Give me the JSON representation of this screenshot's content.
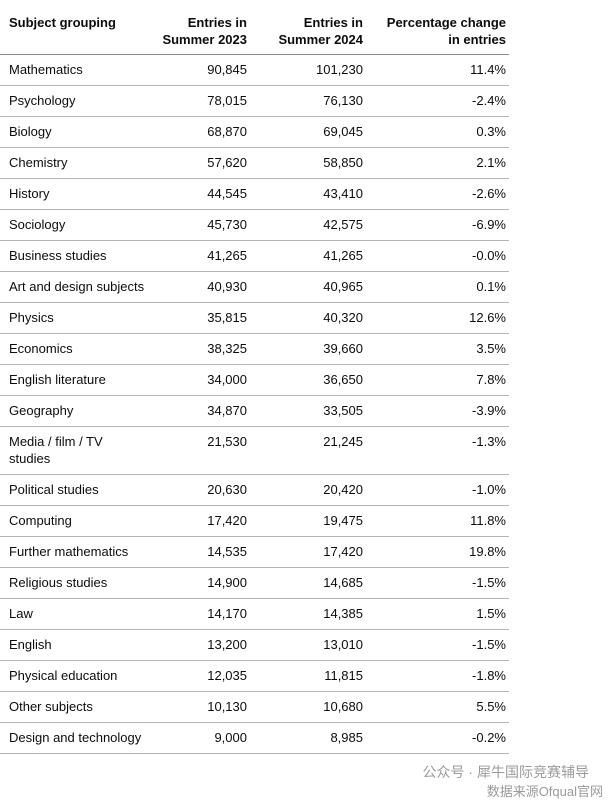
{
  "table": {
    "header": [
      "Subject grouping",
      "Entries in Summer 2023",
      "Entries in Summer 2024",
      "Percentage change in entries"
    ],
    "rows": [
      [
        "Mathematics",
        "90,845",
        "101,230",
        "11.4%"
      ],
      [
        "Psychology",
        "78,015",
        "76,130",
        "-2.4%"
      ],
      [
        "Biology",
        "68,870",
        "69,045",
        "0.3%"
      ],
      [
        "Chemistry",
        "57,620",
        "58,850",
        "2.1%"
      ],
      [
        "History",
        "44,545",
        "43,410",
        "-2.6%"
      ],
      [
        "Sociology",
        "45,730",
        "42,575",
        "-6.9%"
      ],
      [
        "Business studies",
        "41,265",
        "41,265",
        "-0.0%"
      ],
      [
        "Art and design subjects",
        "40,930",
        "40,965",
        "0.1%"
      ],
      [
        "Physics",
        "35,815",
        "40,320",
        "12.6%"
      ],
      [
        "Economics",
        "38,325",
        "39,660",
        "3.5%"
      ],
      [
        "English literature",
        "34,000",
        "36,650",
        "7.8%"
      ],
      [
        "Geography",
        "34,870",
        "33,505",
        "-3.9%"
      ],
      [
        "Media / film / TV studies",
        "21,530",
        "21,245",
        "-1.3%"
      ],
      [
        "Political studies",
        "20,630",
        "20,420",
        "-1.0%"
      ],
      [
        "Computing",
        "17,420",
        "19,475",
        "11.8%"
      ],
      [
        "Further mathematics",
        "14,535",
        "17,420",
        "19.8%"
      ],
      [
        "Religious studies",
        "14,900",
        "14,685",
        "-1.5%"
      ],
      [
        "Law",
        "14,170",
        "14,385",
        "1.5%"
      ],
      [
        "English",
        "13,200",
        "13,010",
        "-1.5%"
      ],
      [
        "Physical education",
        "12,035",
        "11,815",
        "-1.8%"
      ],
      [
        "Other subjects",
        "10,130",
        "10,680",
        "5.5%"
      ],
      [
        "Design and technology",
        "9,000",
        "8,985",
        "-0.2%"
      ]
    ]
  },
  "watermark": [
    "公众号 · 犀牛国际竞赛辅导",
    "数据来源Ofqual官网"
  ]
}
